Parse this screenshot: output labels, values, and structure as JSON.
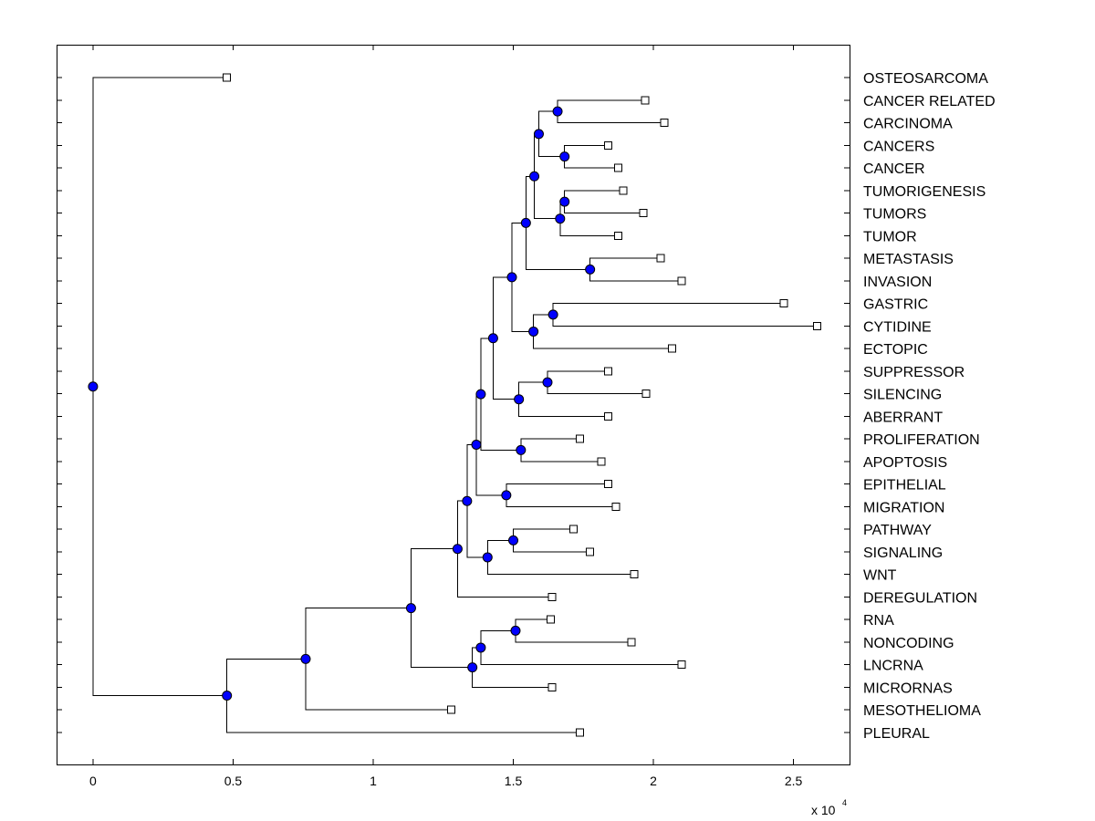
{
  "chart_data": {
    "type": "dendrogram",
    "title": "",
    "xlabel": "",
    "ylabel": "",
    "x_scale_label": "x 10",
    "x_scale_exponent": "4",
    "xlim": [
      -0.13,
      2.7
    ],
    "x_ticks": [
      {
        "value": 0,
        "label": "0"
      },
      {
        "value": 0.5,
        "label": "0.5"
      },
      {
        "value": 1,
        "label": "1"
      },
      {
        "value": 1.5,
        "label": "1.5"
      },
      {
        "value": 2,
        "label": "2"
      },
      {
        "value": 2.5,
        "label": "2.5"
      }
    ],
    "leaves": [
      {
        "name": "OSTEOSARCOMA",
        "x": 0.478
      },
      {
        "name": "CANCER RELATED",
        "x": 1.971
      },
      {
        "name": "CARCINOMA",
        "x": 2.039
      },
      {
        "name": "CANCERS",
        "x": 1.838
      },
      {
        "name": "CANCER",
        "x": 1.875
      },
      {
        "name": "TUMORIGENESIS",
        "x": 1.893
      },
      {
        "name": "TUMORS",
        "x": 1.964
      },
      {
        "name": "TUMOR",
        "x": 1.875
      },
      {
        "name": "METASTASIS",
        "x": 2.026
      },
      {
        "name": "INVASION",
        "x": 2.1
      },
      {
        "name": "GASTRIC",
        "x": 2.466
      },
      {
        "name": "CYTIDINE",
        "x": 2.584
      },
      {
        "name": "ECTOPIC",
        "x": 2.066
      },
      {
        "name": "SUPPRESSOR",
        "x": 1.838
      },
      {
        "name": "SILENCING",
        "x": 1.974
      },
      {
        "name": "ABERRANT",
        "x": 1.838
      },
      {
        "name": "PROLIFERATION",
        "x": 1.738
      },
      {
        "name": "APOPTOSIS",
        "x": 1.815
      },
      {
        "name": "EPITHELIAL",
        "x": 1.838
      },
      {
        "name": "MIGRATION",
        "x": 1.866
      },
      {
        "name": "PATHWAY",
        "x": 1.715
      },
      {
        "name": "SIGNALING",
        "x": 1.774
      },
      {
        "name": "WNT",
        "x": 1.931
      },
      {
        "name": "DEREGULATION",
        "x": 1.639
      },
      {
        "name": "RNA",
        "x": 1.633
      },
      {
        "name": "NONCODING",
        "x": 1.922
      },
      {
        "name": "LNCRNA",
        "x": 2.1
      },
      {
        "name": "MICRORNAS",
        "x": 1.639
      },
      {
        "name": "MESOTHELIOMA",
        "x": 1.279
      },
      {
        "name": "PLEURAL",
        "x": 1.738
      }
    ],
    "merges": [
      {
        "x": 1.658,
        "children": [
          "L1",
          "L2"
        ]
      },
      {
        "x": 1.683,
        "children": [
          "L3",
          "L4"
        ]
      },
      {
        "x": 1.591,
        "children": [
          "N0",
          "N1"
        ]
      },
      {
        "x": 1.683,
        "children": [
          "L5",
          "L6"
        ]
      },
      {
        "x": 1.667,
        "children": [
          "N3",
          "L7"
        ]
      },
      {
        "x": 1.575,
        "children": [
          "N2",
          "N4"
        ]
      },
      {
        "x": 1.774,
        "children": [
          "L8",
          "L9"
        ]
      },
      {
        "x": 1.545,
        "children": [
          "N5",
          "N6"
        ]
      },
      {
        "x": 1.642,
        "children": [
          "L10",
          "L11"
        ]
      },
      {
        "x": 1.572,
        "children": [
          "N8",
          "L12"
        ]
      },
      {
        "x": 1.495,
        "children": [
          "N7",
          "N9"
        ]
      },
      {
        "x": 1.622,
        "children": [
          "L13",
          "L14"
        ]
      },
      {
        "x": 1.52,
        "children": [
          "N11",
          "L15"
        ]
      },
      {
        "x": 1.428,
        "children": [
          "N10",
          "N12"
        ]
      },
      {
        "x": 1.527,
        "children": [
          "L16",
          "L17"
        ]
      },
      {
        "x": 1.384,
        "children": [
          "N13",
          "N14"
        ]
      },
      {
        "x": 1.475,
        "children": [
          "L18",
          "L19"
        ]
      },
      {
        "x": 1.368,
        "children": [
          "N15",
          "N16"
        ]
      },
      {
        "x": 1.5,
        "children": [
          "L20",
          "L21"
        ]
      },
      {
        "x": 1.408,
        "children": [
          "N18",
          "L22"
        ]
      },
      {
        "x": 1.335,
        "children": [
          "N17",
          "N19"
        ]
      },
      {
        "x": 1.301,
        "children": [
          "N20",
          "L23"
        ]
      },
      {
        "x": 1.508,
        "children": [
          "L24",
          "L25"
        ]
      },
      {
        "x": 1.384,
        "children": [
          "N22",
          "L26"
        ]
      },
      {
        "x": 1.354,
        "children": [
          "N23",
          "L27"
        ]
      },
      {
        "x": 1.135,
        "children": [
          "N21",
          "N24"
        ]
      },
      {
        "x": 0.759,
        "children": [
          "N25",
          "L28"
        ]
      },
      {
        "x": 0.478,
        "children": [
          "N26",
          "L29"
        ]
      },
      {
        "x": 0.0,
        "children": [
          "L0",
          "N27"
        ]
      }
    ]
  }
}
